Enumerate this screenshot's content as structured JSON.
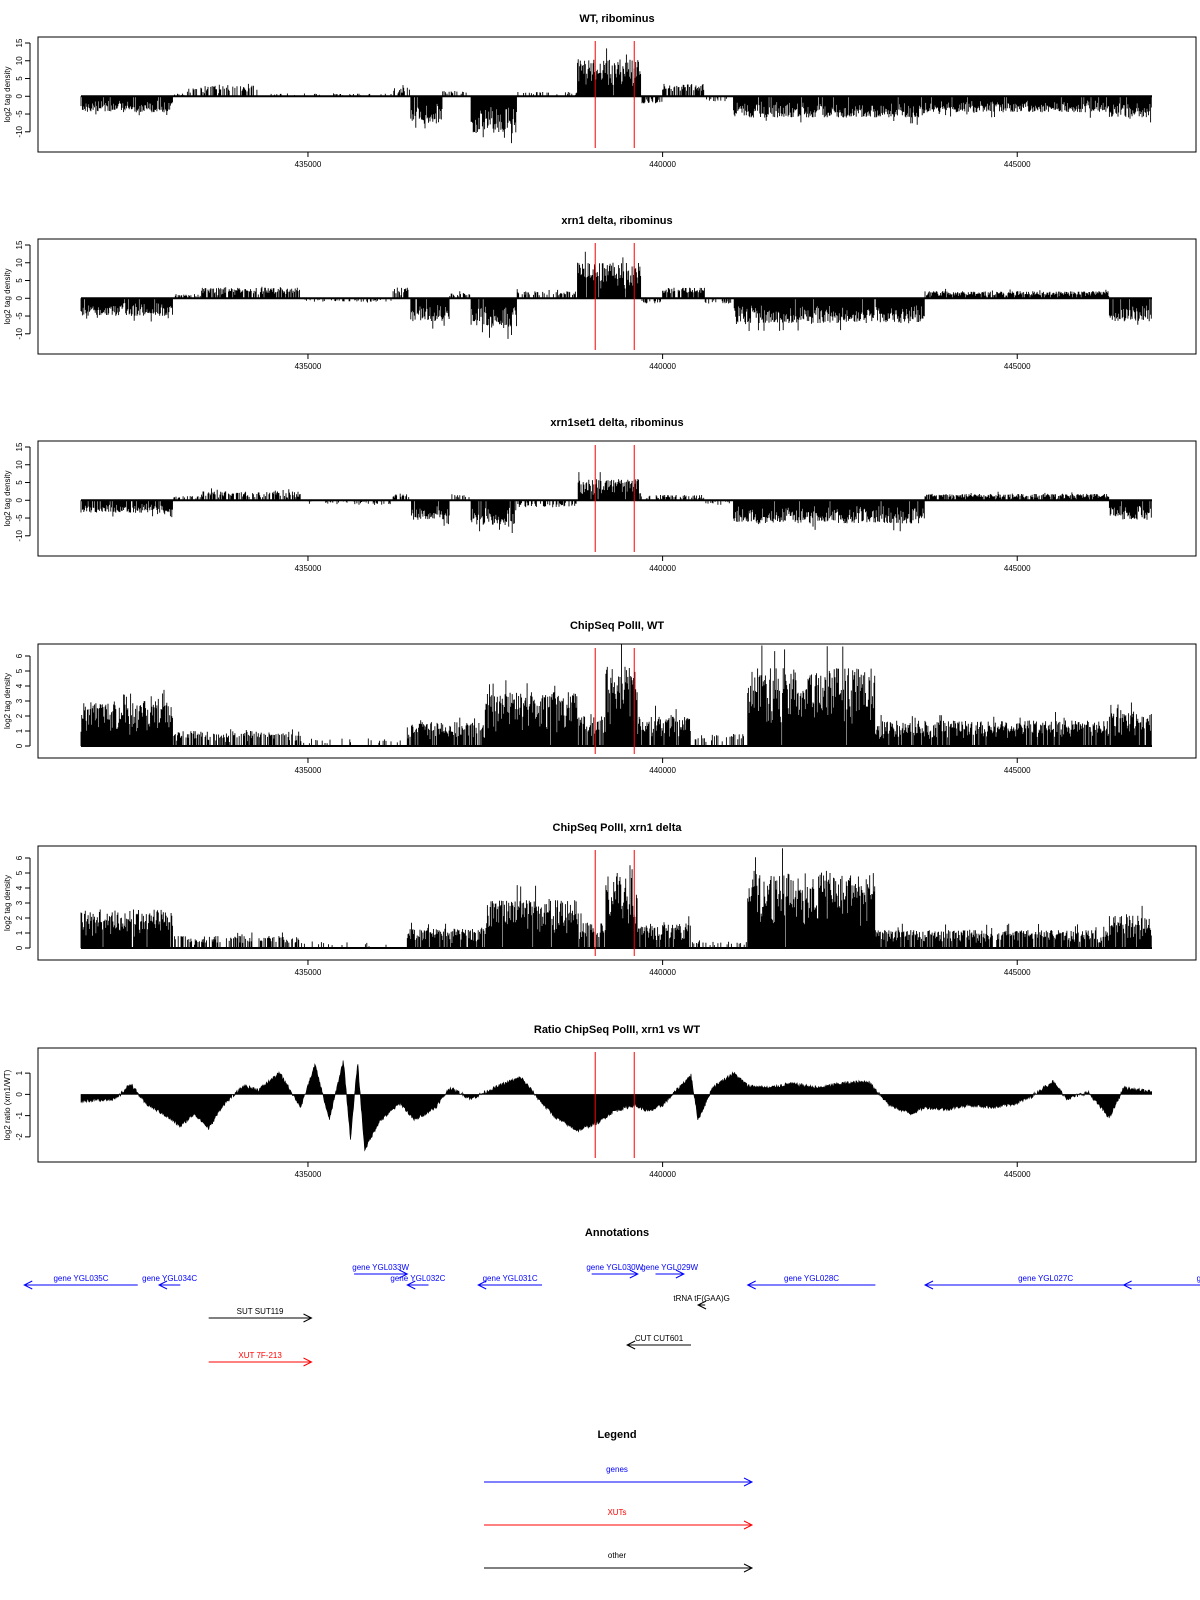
{
  "colors": {
    "signal": "#000000",
    "marker": "#ff0000",
    "genes": "#0000ff",
    "xuts": "#ff0000",
    "other": "#000000"
  },
  "markers": [
    439050,
    439600
  ],
  "chart_data": [
    {
      "id": "wt-ribominus",
      "type": "bar",
      "title": "WT, ribominus",
      "xlabel": "",
      "ylabel": "log2 tag density",
      "xlim": [
        431800,
        446900
      ],
      "ylim": [
        -14,
        15
      ],
      "xticks": [
        435000,
        440000,
        445000
      ],
      "xtick_labels": [
        "435000",
        "440000",
        "445000"
      ],
      "yticks": [
        -10,
        -5,
        0,
        5,
        10,
        15
      ],
      "ytick_labels": [
        "-10",
        "-5",
        "0",
        "5",
        "10",
        "15"
      ],
      "baseline": 0,
      "grid": false,
      "segments": [
        {
          "from": 431800,
          "to": 433100,
          "amp": -4.5,
          "den": 0.95
        },
        {
          "from": 433100,
          "to": 433300,
          "amp": 1.0,
          "den": 0.35
        },
        {
          "from": 433300,
          "to": 434300,
          "amp": 3.0,
          "den": 0.55
        },
        {
          "from": 434300,
          "to": 436200,
          "amp": 0.8,
          "den": 0.15
        },
        {
          "from": 436200,
          "to": 436450,
          "amp": 2.5,
          "den": 0.6
        },
        {
          "from": 436450,
          "to": 436900,
          "amp": -8.0,
          "den": 0.95
        },
        {
          "from": 436900,
          "to": 437300,
          "amp": 1.5,
          "den": 0.3
        },
        {
          "from": 437300,
          "to": 437950,
          "amp": -10.5,
          "den": 0.97
        },
        {
          "from": 437950,
          "to": 438800,
          "amp": 1.2,
          "den": 0.3
        },
        {
          "from": 438800,
          "to": 439700,
          "amp": 10.5,
          "den": 0.98
        },
        {
          "from": 439700,
          "to": 440000,
          "amp": -2.0,
          "den": 0.5
        },
        {
          "from": 440000,
          "to": 440600,
          "amp": 3.5,
          "den": 0.7
        },
        {
          "from": 440600,
          "to": 441000,
          "amp": -1.5,
          "den": 0.35
        },
        {
          "from": 441000,
          "to": 443700,
          "amp": -6.0,
          "den": 0.97
        },
        {
          "from": 443700,
          "to": 446300,
          "amp": -4.5,
          "den": 0.95
        },
        {
          "from": 446300,
          "to": 446900,
          "amp": -6.0,
          "den": 0.97
        }
      ]
    },
    {
      "id": "xrn1-ribominus",
      "type": "bar",
      "title": "xrn1 delta, ribominus",
      "xlabel": "",
      "ylabel": "log2 tag density",
      "xlim": [
        431800,
        446900
      ],
      "ylim": [
        -14,
        15
      ],
      "xticks": [
        435000,
        440000,
        445000
      ],
      "xtick_labels": [
        "435000",
        "440000",
        "445000"
      ],
      "yticks": [
        -10,
        -5,
        0,
        5,
        10,
        15
      ],
      "ytick_labels": [
        "-10",
        "-5",
        "0",
        "5",
        "10",
        "15"
      ],
      "baseline": 0,
      "grid": false,
      "segments": [
        {
          "from": 431800,
          "to": 433100,
          "amp": -5.0,
          "den": 0.95
        },
        {
          "from": 433100,
          "to": 433500,
          "amp": 1.2,
          "den": 0.4
        },
        {
          "from": 433500,
          "to": 434900,
          "amp": 3.0,
          "den": 0.75
        },
        {
          "from": 434900,
          "to": 436200,
          "amp": -1.0,
          "den": 0.3
        },
        {
          "from": 436200,
          "to": 436450,
          "amp": 3.0,
          "den": 0.7
        },
        {
          "from": 436450,
          "to": 437000,
          "amp": -6.5,
          "den": 0.95
        },
        {
          "from": 437000,
          "to": 437300,
          "amp": 1.5,
          "den": 0.5
        },
        {
          "from": 437300,
          "to": 437950,
          "amp": -8.5,
          "den": 0.97
        },
        {
          "from": 437950,
          "to": 438800,
          "amp": 2.0,
          "den": 0.55
        },
        {
          "from": 438800,
          "to": 439700,
          "amp": 10.0,
          "den": 0.98
        },
        {
          "from": 439700,
          "to": 440000,
          "amp": -1.5,
          "den": 0.5
        },
        {
          "from": 440000,
          "to": 440600,
          "amp": 3.0,
          "den": 0.8
        },
        {
          "from": 440600,
          "to": 441000,
          "amp": -1.5,
          "den": 0.35
        },
        {
          "from": 441000,
          "to": 443700,
          "amp": -7.0,
          "den": 0.98
        },
        {
          "from": 443700,
          "to": 446300,
          "amp": 2.0,
          "den": 0.9
        },
        {
          "from": 446300,
          "to": 446900,
          "amp": -6.5,
          "den": 0.97
        }
      ]
    },
    {
      "id": "xrn1set1-ribominus",
      "type": "bar",
      "title": "xrn1set1 delta, ribominus",
      "xlabel": "",
      "ylabel": "log2 tag density",
      "xlim": [
        431800,
        446900
      ],
      "ylim": [
        -14,
        15
      ],
      "xticks": [
        435000,
        440000,
        445000
      ],
      "xtick_labels": [
        "435000",
        "440000",
        "445000"
      ],
      "yticks": [
        -10,
        -5,
        0,
        5,
        10,
        15
      ],
      "ytick_labels": [
        "-10",
        "-5",
        "0",
        "5",
        "10",
        "15"
      ],
      "baseline": 0,
      "grid": false,
      "segments": [
        {
          "from": 431800,
          "to": 433100,
          "amp": -3.5,
          "den": 0.9
        },
        {
          "from": 433100,
          "to": 433500,
          "amp": 1.2,
          "den": 0.4
        },
        {
          "from": 433500,
          "to": 434900,
          "amp": 2.5,
          "den": 0.6
        },
        {
          "from": 434900,
          "to": 436200,
          "amp": -1.0,
          "den": 0.3
        },
        {
          "from": 436200,
          "to": 436450,
          "amp": 2.0,
          "den": 0.6
        },
        {
          "from": 436450,
          "to": 437000,
          "amp": -5.5,
          "den": 0.9
        },
        {
          "from": 437000,
          "to": 437300,
          "amp": 1.5,
          "den": 0.4
        },
        {
          "from": 437300,
          "to": 437950,
          "amp": -7.0,
          "den": 0.95
        },
        {
          "from": 437950,
          "to": 438800,
          "amp": -2.0,
          "den": 0.5
        },
        {
          "from": 438800,
          "to": 439700,
          "amp": 6.0,
          "den": 0.95
        },
        {
          "from": 439700,
          "to": 440000,
          "amp": 1.5,
          "den": 0.5
        },
        {
          "from": 440000,
          "to": 440600,
          "amp": 1.5,
          "den": 0.5
        },
        {
          "from": 440600,
          "to": 441000,
          "amp": -1.0,
          "den": 0.3
        },
        {
          "from": 441000,
          "to": 443700,
          "amp": -6.5,
          "den": 0.97
        },
        {
          "from": 443700,
          "to": 446300,
          "amp": 1.8,
          "den": 0.85
        },
        {
          "from": 446300,
          "to": 446900,
          "amp": -5.5,
          "den": 0.95
        }
      ]
    },
    {
      "id": "chipseq-wt",
      "type": "bar",
      "title": "ChipSeq PolII, WT",
      "xlabel": "",
      "ylabel": "log2 tag density",
      "xlim": [
        431800,
        446900
      ],
      "ylim": [
        -0.4,
        6.4
      ],
      "xticks": [
        435000,
        440000,
        445000
      ],
      "xtick_labels": [
        "435000",
        "440000",
        "445000"
      ],
      "yticks": [
        0,
        1,
        2,
        3,
        4,
        5,
        6
      ],
      "ytick_labels": [
        "0",
        "1",
        "2",
        "3",
        "4",
        "5",
        "6"
      ],
      "baseline": 0,
      "grid": false,
      "segments": [
        {
          "from": 431800,
          "to": 433100,
          "amp": 3.0,
          "den": 0.97
        },
        {
          "from": 433100,
          "to": 434900,
          "amp": 1.0,
          "den": 0.55
        },
        {
          "from": 434900,
          "to": 436400,
          "amp": 0.5,
          "den": 0.1
        },
        {
          "from": 436400,
          "to": 437500,
          "amp": 1.6,
          "den": 0.85
        },
        {
          "from": 437500,
          "to": 438800,
          "amp": 3.6,
          "den": 0.98
        },
        {
          "from": 438800,
          "to": 439200,
          "amp": 2.0,
          "den": 0.85
        },
        {
          "from": 439200,
          "to": 439650,
          "amp": 5.3,
          "den": 0.99
        },
        {
          "from": 439650,
          "to": 440400,
          "amp": 2.0,
          "den": 0.9
        },
        {
          "from": 440400,
          "to": 441200,
          "amp": 0.8,
          "den": 0.3
        },
        {
          "from": 441200,
          "to": 443000,
          "amp": 5.2,
          "den": 0.99
        },
        {
          "from": 443000,
          "to": 446300,
          "amp": 1.7,
          "den": 0.88
        },
        {
          "from": 446300,
          "to": 446900,
          "amp": 2.4,
          "den": 0.95
        }
      ]
    },
    {
      "id": "chipseq-xrn1",
      "type": "bar",
      "title": "ChipSeq PolII, xrn1 delta",
      "xlabel": "",
      "ylabel": "log2 tag density",
      "xlim": [
        431800,
        446900
      ],
      "ylim": [
        -0.4,
        6.4
      ],
      "xticks": [
        435000,
        440000,
        445000
      ],
      "xtick_labels": [
        "435000",
        "440000",
        "445000"
      ],
      "yticks": [
        0,
        1,
        2,
        3,
        4,
        5,
        6
      ],
      "ytick_labels": [
        "0",
        "1",
        "2",
        "3",
        "4",
        "5",
        "6"
      ],
      "baseline": 0,
      "grid": false,
      "segments": [
        {
          "from": 431800,
          "to": 433100,
          "amp": 2.6,
          "den": 0.97
        },
        {
          "from": 433100,
          "to": 434900,
          "amp": 0.8,
          "den": 0.45
        },
        {
          "from": 434900,
          "to": 436400,
          "amp": 0.4,
          "den": 0.08
        },
        {
          "from": 436400,
          "to": 437500,
          "amp": 1.3,
          "den": 0.85
        },
        {
          "from": 437500,
          "to": 438800,
          "amp": 3.2,
          "den": 0.98
        },
        {
          "from": 438800,
          "to": 439200,
          "amp": 1.8,
          "den": 0.85
        },
        {
          "from": 439200,
          "to": 439650,
          "amp": 4.8,
          "den": 0.99
        },
        {
          "from": 439650,
          "to": 440400,
          "amp": 1.6,
          "den": 0.9
        },
        {
          "from": 440400,
          "to": 441200,
          "amp": 0.6,
          "den": 0.25
        },
        {
          "from": 441200,
          "to": 443000,
          "amp": 5.0,
          "den": 0.99
        },
        {
          "from": 443000,
          "to": 446300,
          "amp": 1.2,
          "den": 0.85
        },
        {
          "from": 446300,
          "to": 446900,
          "amp": 2.2,
          "den": 0.95
        }
      ]
    },
    {
      "id": "ratio-chipseq",
      "type": "area",
      "title": "Ratio ChipSeq PolII, xrn1 vs WT",
      "xlabel": "",
      "ylabel": "log2 ratio (xrn1/WT)",
      "xlim": [
        431800,
        446900
      ],
      "ylim": [
        -2.9,
        1.9
      ],
      "xticks": [
        435000,
        440000,
        445000
      ],
      "xtick_labels": [
        "435000",
        "440000",
        "445000"
      ],
      "yticks": [
        -2,
        -1,
        0,
        1
      ],
      "ytick_labels": [
        "-2",
        "-1",
        "0",
        "1"
      ],
      "baseline": 0,
      "grid": false,
      "x": [
        431800,
        432300,
        432500,
        432700,
        433000,
        433200,
        433400,
        433600,
        433800,
        434100,
        434300,
        434600,
        434900,
        435100,
        435300,
        435500,
        435600,
        435700,
        435800,
        436000,
        436300,
        436500,
        436800,
        437000,
        437300,
        437700,
        438000,
        438300,
        438500,
        438800,
        439100,
        439300,
        439600,
        439800,
        440000,
        440200,
        440400,
        440500,
        440700,
        441000,
        441200,
        441500,
        441800,
        442200,
        442500,
        442900,
        443200,
        443500,
        443700,
        444000,
        444300,
        444700,
        445000,
        445200,
        445500,
        445700,
        446000,
        446300,
        446500,
        446900
      ],
      "y": [
        -0.3,
        -0.2,
        0.5,
        -0.4,
        -1.0,
        -1.5,
        -0.9,
        -1.6,
        -0.5,
        0.4,
        0.2,
        1.0,
        -0.6,
        1.4,
        -1.2,
        1.6,
        -2.1,
        1.5,
        -2.6,
        -1.3,
        -0.4,
        -1.2,
        -0.6,
        0.3,
        -0.2,
        0.4,
        0.8,
        -0.4,
        -1.1,
        -1.7,
        -1.3,
        -0.8,
        -0.5,
        -0.8,
        -0.5,
        0.2,
        0.9,
        -1.2,
        0.3,
        1.0,
        0.4,
        0.3,
        0.5,
        0.3,
        0.5,
        0.6,
        -0.5,
        -0.9,
        -0.6,
        -0.7,
        -0.5,
        -0.6,
        -0.4,
        -0.1,
        0.6,
        -0.2,
        0.1,
        -1.1,
        0.3,
        0.1
      ]
    }
  ],
  "annotations": {
    "title": "Annotations",
    "xlim": [
      431800,
      446900
    ],
    "items": [
      {
        "label": "gene YGL035C",
        "kind": "genes",
        "row": 0,
        "from": 432600,
        "to": 431000
      },
      {
        "label": "gene YGL034C",
        "kind": "genes",
        "row": 0,
        "from": 433200,
        "to": 432900
      },
      {
        "label": "gene YGL033W",
        "kind": "genes",
        "row": -1,
        "from": 435650,
        "to": 436400
      },
      {
        "label": "gene YGL032C",
        "kind": "genes",
        "row": 0,
        "from": 436700,
        "to": 436400
      },
      {
        "label": "gene YGL031C",
        "kind": "genes",
        "row": 0,
        "from": 438300,
        "to": 437400
      },
      {
        "label": "gene YGL030W",
        "kind": "genes",
        "row": -1,
        "from": 439000,
        "to": 439650
      },
      {
        "label": "gene YGL029W",
        "kind": "genes",
        "row": -1,
        "from": 439900,
        "to": 440300
      },
      {
        "label": "gene YGL028C",
        "kind": "genes",
        "row": 0,
        "from": 443000,
        "to": 441200
      },
      {
        "label": "gene YGL027C",
        "kind": "genes",
        "row": 0,
        "from": 447100,
        "to": 443700
      },
      {
        "label": "gene YG",
        "kind": "genes",
        "row": 0,
        "from": 449000,
        "to": 446500
      },
      {
        "label": "tRNA tF(GAA)G",
        "kind": "other",
        "row": 1,
        "from": 440600,
        "to": 440500
      },
      {
        "label": "SUT SUT119",
        "kind": "other",
        "row": 2,
        "from": 433600,
        "to": 435050
      },
      {
        "label": "CUT CUT601",
        "kind": "other",
        "row": 4,
        "from": 440400,
        "to": 439500
      },
      {
        "label": "XUT 7F-213",
        "kind": "xuts",
        "row": 5,
        "from": 433600,
        "to": 435050
      }
    ]
  },
  "legend": {
    "title": "Legend",
    "entries": [
      {
        "label": "genes",
        "kind": "genes"
      },
      {
        "label": "XUTs",
        "kind": "xuts"
      },
      {
        "label": "other",
        "kind": "other"
      }
    ]
  }
}
